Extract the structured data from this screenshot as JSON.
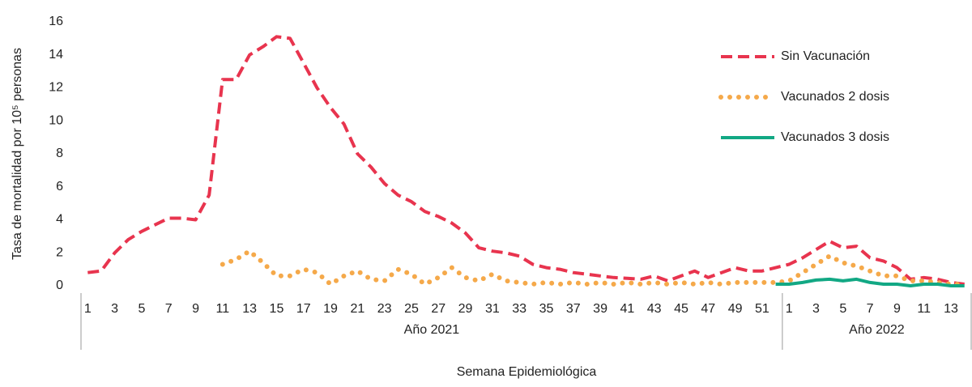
{
  "chart_data": {
    "type": "line",
    "ylabel": "Tasa de mortalidad por 10⁵ personas",
    "xlabel": "Semana Epidemiológica",
    "groups": [
      {
        "label": "Año 2021",
        "categories": [
          "1",
          null,
          "3",
          null,
          "5",
          null,
          "7",
          null,
          "9",
          null,
          "11",
          null,
          "13",
          null,
          "15",
          null,
          "17",
          null,
          "19",
          null,
          "21",
          null,
          "23",
          null,
          "25",
          null,
          "27",
          null,
          "29",
          null,
          "31",
          null,
          "33",
          null,
          "35",
          null,
          "37",
          null,
          "39",
          null,
          "41",
          null,
          "43",
          null,
          "45",
          null,
          "47",
          null,
          "49",
          null,
          "51",
          null
        ]
      },
      {
        "label": "Año 2022",
        "categories": [
          "1",
          null,
          "3",
          null,
          "5",
          null,
          "7",
          null,
          "9",
          null,
          "11",
          null,
          "13",
          null
        ]
      }
    ],
    "ylim": [
      0,
      16
    ],
    "yticks": [
      0,
      2,
      4,
      6,
      8,
      10,
      12,
      14,
      16
    ],
    "series": [
      {
        "name": "Sin Vacunación",
        "color": "#e8344e",
        "style": "dashed",
        "values": [
          0.8,
          0.9,
          2.0,
          2.8,
          3.3,
          3.7,
          4.1,
          4.1,
          4.0,
          5.5,
          12.5,
          12.5,
          14.0,
          14.5,
          15.1,
          15.0,
          13.5,
          12.0,
          10.8,
          9.8,
          8.0,
          7.2,
          6.2,
          5.5,
          5.1,
          4.5,
          4.2,
          3.8,
          3.2,
          2.3,
          2.1,
          2.0,
          1.8,
          1.3,
          1.1,
          1.0,
          0.8,
          0.7,
          0.6,
          0.5,
          0.45,
          0.4,
          0.6,
          0.3,
          0.6,
          0.9,
          0.5,
          0.8,
          1.1,
          0.9,
          0.9,
          1.1,
          1.3,
          1.7,
          2.2,
          2.7,
          2.3,
          2.4,
          1.7,
          1.5,
          1.1,
          0.4,
          0.5,
          0.4,
          0.2,
          0.1
        ]
      },
      {
        "name": "Vacunados 2 dosis",
        "color": "#f5a94a",
        "style": "dotted",
        "values": [
          null,
          null,
          null,
          null,
          null,
          null,
          null,
          null,
          null,
          null,
          1.3,
          1.6,
          2.1,
          1.4,
          0.6,
          0.6,
          1.0,
          0.8,
          0.1,
          0.6,
          0.9,
          0.4,
          0.3,
          1.0,
          0.7,
          0.1,
          0.5,
          1.1,
          0.5,
          0.3,
          0.7,
          0.3,
          0.2,
          0.1,
          0.2,
          0.1,
          0.2,
          0.1,
          0.2,
          0.1,
          0.2,
          0.1,
          0.2,
          0.1,
          0.2,
          0.1,
          0.2,
          0.1,
          0.2,
          0.2,
          0.2,
          0.2,
          0.3,
          0.8,
          1.3,
          1.8,
          1.4,
          1.2,
          0.9,
          0.6,
          0.6,
          0.3,
          0.3,
          0.2,
          0.1,
          0.1
        ]
      },
      {
        "name": "Vacunados 3 dosis",
        "color": "#12a884",
        "style": "solid",
        "values": [
          null,
          null,
          null,
          null,
          null,
          null,
          null,
          null,
          null,
          null,
          null,
          null,
          null,
          null,
          null,
          null,
          null,
          null,
          null,
          null,
          null,
          null,
          null,
          null,
          null,
          null,
          null,
          null,
          null,
          null,
          null,
          null,
          null,
          null,
          null,
          null,
          null,
          null,
          null,
          null,
          null,
          null,
          null,
          null,
          null,
          null,
          null,
          null,
          null,
          null,
          null,
          0.1,
          0.1,
          0.2,
          0.35,
          0.4,
          0.3,
          0.4,
          0.2,
          0.1,
          0.1,
          0.0,
          0.1,
          0.1,
          0.0,
          0.0
        ]
      }
    ]
  }
}
